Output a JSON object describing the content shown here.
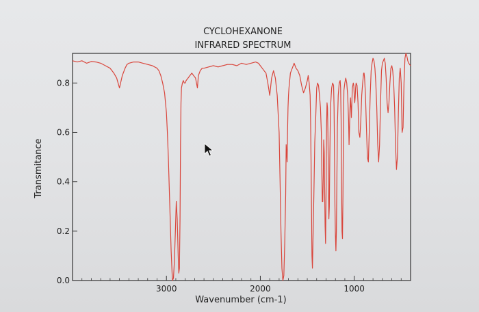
{
  "chart_data": {
    "type": "line",
    "title_lines": [
      "CYCLOHEXANONE",
      "INFRARED SPECTRUM"
    ],
    "xlabel": "Wavenumber (cm-1)",
    "ylabel": "Transmitance",
    "xlim": [
      4000,
      400
    ],
    "ylim": [
      0.0,
      0.92
    ],
    "x_ticks": [
      {
        "value": 3000,
        "label": "3000"
      },
      {
        "value": 2000,
        "label": "2000"
      },
      {
        "value": 1000,
        "label": "1000"
      }
    ],
    "y_ticks": [
      {
        "value": 0.0,
        "label": "0.0"
      },
      {
        "value": 0.2,
        "label": "0.2"
      },
      {
        "value": 0.4,
        "label": "0.4"
      },
      {
        "value": 0.6,
        "label": "0.6"
      },
      {
        "value": 0.8,
        "label": "0.8"
      }
    ],
    "grid": false,
    "line_color": "#d9453b",
    "series": [
      {
        "x": [
          4000,
          3950,
          3900,
          3850,
          3800,
          3750,
          3700,
          3650,
          3600,
          3560,
          3530,
          3500,
          3470,
          3440,
          3420,
          3400,
          3350,
          3300,
          3250,
          3200,
          3150,
          3100,
          3080,
          3060,
          3040,
          3020,
          3000,
          2990,
          2980,
          2970,
          2960,
          2950,
          2940,
          2935,
          2925,
          2915,
          2905,
          2895,
          2885,
          2875,
          2868,
          2862,
          2855,
          2850,
          2845,
          2840,
          2830,
          2820,
          2810,
          2800,
          2790,
          2770,
          2750,
          2730,
          2710,
          2690,
          2680,
          2670,
          2660,
          2640,
          2620,
          2600,
          2550,
          2500,
          2450,
          2400,
          2350,
          2300,
          2250,
          2200,
          2150,
          2100,
          2050,
          2020,
          2000,
          1980,
          1960,
          1940,
          1920,
          1900,
          1880,
          1860,
          1840,
          1820,
          1800,
          1790,
          1780,
          1770,
          1760,
          1750,
          1740,
          1730,
          1725,
          1720,
          1715,
          1710,
          1705,
          1700,
          1695,
          1690,
          1685,
          1680,
          1670,
          1660,
          1650,
          1640,
          1630,
          1620,
          1600,
          1580,
          1560,
          1540,
          1520,
          1500,
          1490,
          1480,
          1470,
          1465,
          1460,
          1455,
          1450,
          1445,
          1440,
          1430,
          1420,
          1410,
          1400,
          1390,
          1380,
          1370,
          1360,
          1350,
          1345,
          1340,
          1335,
          1330,
          1325,
          1320,
          1315,
          1310,
          1305,
          1300,
          1295,
          1290,
          1285,
          1280,
          1275,
          1270,
          1265,
          1260,
          1255,
          1250,
          1245,
          1240,
          1230,
          1220,
          1215,
          1210,
          1205,
          1200,
          1195,
          1190,
          1185,
          1180,
          1170,
          1160,
          1150,
          1145,
          1140,
          1135,
          1130,
          1125,
          1120,
          1115,
          1110,
          1100,
          1090,
          1080,
          1070,
          1060,
          1055,
          1050,
          1045,
          1040,
          1035,
          1030,
          1020,
          1010,
          1005,
          1000,
          995,
          990,
          985,
          980,
          970,
          960,
          950,
          940,
          930,
          920,
          910,
          905,
          900,
          895,
          890,
          880,
          870,
          860,
          850,
          840,
          830,
          820,
          810,
          800,
          790,
          780,
          770,
          760,
          750,
          740,
          730,
          720,
          710,
          700,
          690,
          680,
          670,
          660,
          650,
          640,
          630,
          620,
          610,
          600,
          590,
          580,
          570,
          560,
          550,
          540,
          530,
          520,
          510,
          500,
          490,
          480,
          470,
          460,
          450,
          440,
          430,
          420,
          410,
          400
        ],
        "y": [
          0.89,
          0.885,
          0.89,
          0.88,
          0.887,
          0.885,
          0.88,
          0.87,
          0.86,
          0.84,
          0.82,
          0.78,
          0.83,
          0.86,
          0.875,
          0.88,
          0.885,
          0.885,
          0.88,
          0.875,
          0.87,
          0.86,
          0.85,
          0.83,
          0.8,
          0.76,
          0.68,
          0.6,
          0.5,
          0.38,
          0.25,
          0.12,
          0.03,
          0.0,
          0.01,
          0.08,
          0.2,
          0.32,
          0.25,
          0.1,
          0.03,
          0.05,
          0.25,
          0.55,
          0.72,
          0.78,
          0.8,
          0.81,
          0.8,
          0.8,
          0.81,
          0.82,
          0.83,
          0.84,
          0.83,
          0.82,
          0.8,
          0.78,
          0.83,
          0.85,
          0.86,
          0.86,
          0.865,
          0.87,
          0.865,
          0.87,
          0.875,
          0.875,
          0.87,
          0.88,
          0.875,
          0.88,
          0.885,
          0.88,
          0.87,
          0.86,
          0.85,
          0.84,
          0.8,
          0.75,
          0.82,
          0.85,
          0.82,
          0.75,
          0.6,
          0.4,
          0.2,
          0.05,
          0.0,
          0.02,
          0.15,
          0.35,
          0.55,
          0.52,
          0.48,
          0.6,
          0.7,
          0.75,
          0.78,
          0.8,
          0.82,
          0.84,
          0.85,
          0.86,
          0.87,
          0.88,
          0.87,
          0.86,
          0.85,
          0.83,
          0.79,
          0.76,
          0.78,
          0.81,
          0.83,
          0.8,
          0.75,
          0.65,
          0.5,
          0.3,
          0.1,
          0.05,
          0.15,
          0.35,
          0.56,
          0.66,
          0.78,
          0.8,
          0.79,
          0.75,
          0.7,
          0.6,
          0.45,
          0.32,
          0.32,
          0.42,
          0.57,
          0.52,
          0.38,
          0.22,
          0.15,
          0.35,
          0.62,
          0.72,
          0.7,
          0.6,
          0.42,
          0.25,
          0.3,
          0.5,
          0.65,
          0.72,
          0.75,
          0.78,
          0.8,
          0.79,
          0.7,
          0.5,
          0.3,
          0.18,
          0.12,
          0.2,
          0.4,
          0.62,
          0.75,
          0.8,
          0.81,
          0.78,
          0.65,
          0.4,
          0.2,
          0.17,
          0.35,
          0.62,
          0.77,
          0.8,
          0.82,
          0.8,
          0.75,
          0.65,
          0.55,
          0.62,
          0.7,
          0.74,
          0.7,
          0.66,
          0.78,
          0.8,
          0.79,
          0.75,
          0.72,
          0.74,
          0.78,
          0.8,
          0.79,
          0.72,
          0.6,
          0.58,
          0.65,
          0.75,
          0.8,
          0.82,
          0.84,
          0.84,
          0.82,
          0.75,
          0.62,
          0.5,
          0.48,
          0.6,
          0.75,
          0.85,
          0.88,
          0.9,
          0.89,
          0.86,
          0.8,
          0.7,
          0.55,
          0.48,
          0.55,
          0.72,
          0.85,
          0.88,
          0.89,
          0.9,
          0.88,
          0.82,
          0.72,
          0.68,
          0.72,
          0.8,
          0.86,
          0.87,
          0.85,
          0.8,
          0.7,
          0.55,
          0.45,
          0.5,
          0.68,
          0.82,
          0.86,
          0.8,
          0.6,
          0.62,
          0.8,
          0.9,
          0.92,
          0.91,
          0.89,
          0.88,
          0.875,
          0.87
        ]
      }
    ]
  }
}
